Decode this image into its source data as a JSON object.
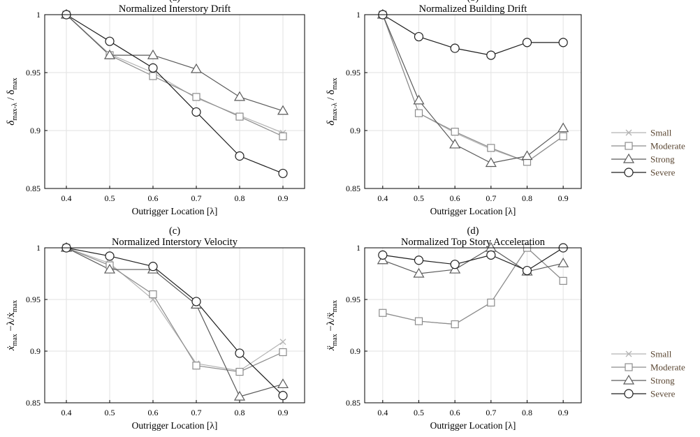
{
  "styles": {
    "Small": {
      "color": "#b4b4b4",
      "marker": "x"
    },
    "Moderate": {
      "color": "#8c8c8c",
      "marker": "square"
    },
    "Strong": {
      "color": "#5a5a5a",
      "marker": "triangle"
    },
    "Severe": {
      "color": "#1e1e1e",
      "marker": "circle"
    }
  },
  "legend_entries": [
    "Small",
    "Moderate",
    "Strong",
    "Severe"
  ],
  "chart_data": [
    {
      "type": "line",
      "panel": "(a)",
      "title": "Normalized Interstory Drift",
      "xlabel": "Outrigger Location [λ]",
      "ylabel_main": "δ",
      "ylabel_sub": "max-λ",
      "ylabel_mid": " / δ",
      "ylabel_sub2": "max",
      "x": [
        0.4,
        0.5,
        0.6,
        0.7,
        0.8,
        0.9
      ],
      "xticks": [
        "0.4",
        "0.5",
        "0.6",
        "0.7",
        "0.8",
        "0.9"
      ],
      "yticks": [
        "0.85",
        "0.9",
        "0.95",
        "1"
      ],
      "xlim": [
        0.35,
        0.95
      ],
      "ylim": [
        0.85,
        1.0
      ],
      "grid": true,
      "series": [
        {
          "name": "Small",
          "values": [
            1.0,
            0.966,
            0.95,
            0.928,
            0.913,
            0.898
          ]
        },
        {
          "name": "Moderate",
          "values": [
            1.0,
            0.965,
            0.947,
            0.929,
            0.912,
            0.895
          ]
        },
        {
          "name": "Strong",
          "values": [
            1.0,
            0.965,
            0.965,
            0.953,
            0.929,
            0.917
          ]
        },
        {
          "name": "Severe",
          "values": [
            1.0,
            0.977,
            0.954,
            0.916,
            0.878,
            0.863
          ]
        }
      ]
    },
    {
      "type": "line",
      "panel": "(b)",
      "title": "Normalized Building Drift",
      "xlabel": "Outrigger Location [λ]",
      "ylabel_main": "δ",
      "ylabel_sub": "max-λ",
      "ylabel_mid": " / δ",
      "ylabel_sub2": "max",
      "x": [
        0.4,
        0.5,
        0.6,
        0.7,
        0.8,
        0.9
      ],
      "xticks": [
        "0.4",
        "0.5",
        "0.6",
        "0.7",
        "0.8",
        "0.9"
      ],
      "yticks": [
        "0.85",
        "0.9",
        "0.95",
        "1"
      ],
      "xlim": [
        0.35,
        0.95
      ],
      "ylim": [
        0.85,
        1.0
      ],
      "grid": true,
      "series": [
        {
          "name": "Small",
          "values": [
            1.0,
            0.915,
            0.898,
            0.884,
            0.873,
            0.895
          ]
        },
        {
          "name": "Moderate",
          "values": [
            1.0,
            0.915,
            0.899,
            0.885,
            0.873,
            0.895
          ]
        },
        {
          "name": "Strong",
          "values": [
            1.0,
            0.926,
            0.888,
            0.872,
            0.878,
            0.902
          ]
        },
        {
          "name": "Severe",
          "values": [
            1.0,
            0.981,
            0.971,
            0.965,
            0.976,
            0.976
          ]
        }
      ]
    },
    {
      "type": "line",
      "panel": "(c)",
      "title": "Normalized Interstory Velocity",
      "xlabel": "Outrigger Location [λ]",
      "ylabel_main": "ẋ",
      "ylabel_sub": "max",
      "ylabel_mid": " −λ/ẋ",
      "ylabel_sub2": "max",
      "x": [
        0.4,
        0.5,
        0.6,
        0.7,
        0.8,
        0.9
      ],
      "xticks": [
        "0.4",
        "0.5",
        "0.6",
        "0.7",
        "0.8",
        "0.9"
      ],
      "yticks": [
        "0.85",
        "0.9",
        "0.95",
        "1"
      ],
      "xlim": [
        0.35,
        0.95
      ],
      "ylim": [
        0.85,
        1.0
      ],
      "grid": true,
      "series": [
        {
          "name": "Small",
          "values": [
            1.0,
            0.985,
            0.95,
            0.888,
            0.881,
            0.909
          ]
        },
        {
          "name": "Moderate",
          "values": [
            1.0,
            0.983,
            0.955,
            0.886,
            0.88,
            0.899
          ]
        },
        {
          "name": "Strong",
          "values": [
            1.0,
            0.979,
            0.979,
            0.945,
            0.856,
            0.868
          ]
        },
        {
          "name": "Severe",
          "values": [
            1.0,
            0.992,
            0.982,
            0.948,
            0.898,
            0.857
          ]
        }
      ]
    },
    {
      "type": "line",
      "panel": "(d)",
      "title": "Normalized Top Story Acceleration",
      "xlabel": "Outrigger Location [λ]",
      "ylabel_main": "ẍ",
      "ylabel_sub": "max",
      "ylabel_mid": " −λ/ẍ",
      "ylabel_sub2": "max",
      "x": [
        0.4,
        0.5,
        0.6,
        0.7,
        0.8,
        0.9
      ],
      "xticks": [
        "0.4",
        "0.5",
        "0.6",
        "0.7",
        "0.8",
        "0.9"
      ],
      "yticks": [
        "0.85",
        "0.9",
        "0.95",
        "1"
      ],
      "xlim": [
        0.35,
        0.95
      ],
      "ylim": [
        0.85,
        1.0
      ],
      "grid": true,
      "series": [
        {
          "name": "Small",
          "values": [
            0.937,
            0.929,
            0.926,
            0.947,
            1.0,
            0.968
          ]
        },
        {
          "name": "Moderate",
          "values": [
            0.937,
            0.929,
            0.926,
            0.947,
            1.0,
            0.968
          ]
        },
        {
          "name": "Strong",
          "values": [
            0.988,
            0.975,
            0.979,
            1.0,
            0.977,
            0.985
          ]
        },
        {
          "name": "Severe",
          "values": [
            0.993,
            0.988,
            0.984,
            0.993,
            0.978,
            1.0
          ]
        }
      ]
    }
  ]
}
